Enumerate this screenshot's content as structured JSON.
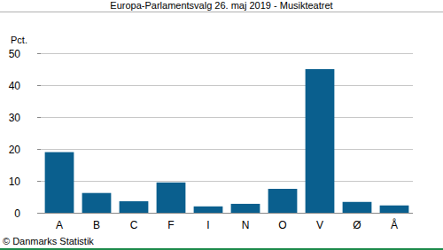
{
  "chart_data": {
    "type": "bar",
    "title": "Europa-Parlamentsvalg 26. maj 2019 - Musikteatret",
    "y_label": "Pct.",
    "source": "© Danmarks Statistik",
    "categories": [
      "A",
      "B",
      "C",
      "F",
      "I",
      "N",
      "O",
      "V",
      "Ø",
      "Å"
    ],
    "values": [
      19.0,
      6.2,
      3.6,
      9.5,
      2.0,
      2.8,
      7.5,
      45.0,
      3.4,
      2.3
    ],
    "color": "#0a5f8e",
    "ylim": [
      0,
      50
    ],
    "yticks": [
      0,
      10,
      20,
      30,
      40,
      50
    ],
    "grid": true
  }
}
